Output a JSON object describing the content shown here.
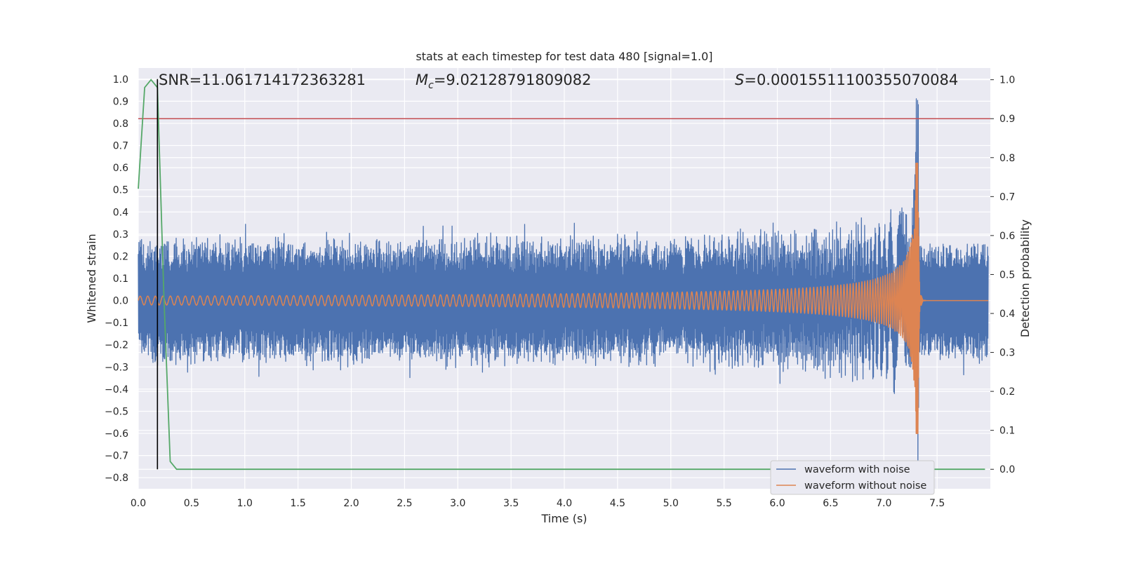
{
  "chart_data": {
    "type": "line",
    "title": "stats at each timestep for test data 480 [signal=1.0]",
    "xlabel": "Time (s)",
    "ylabel": "Whitened strain",
    "y2label": "Detection probability",
    "xlim": [
      0.0,
      8.0
    ],
    "ylim": [
      -0.85,
      1.05
    ],
    "y2lim": [
      -0.05,
      1.03
    ],
    "x_ticks": [
      0.0,
      0.5,
      1.0,
      1.5,
      2.0,
      2.5,
      3.0,
      3.5,
      4.0,
      4.5,
      5.0,
      5.5,
      6.0,
      6.5,
      7.0,
      7.5
    ],
    "x_tick_labels": [
      "0.0",
      "0.5",
      "1.0",
      "1.5",
      "2.0",
      "2.5",
      "3.0",
      "3.5",
      "4.0",
      "4.5",
      "5.0",
      "5.5",
      "6.0",
      "6.5",
      "7.0",
      "7.5"
    ],
    "y_ticks": [
      1.0,
      0.9,
      0.8,
      0.7,
      0.6,
      0.5,
      0.4,
      0.3,
      0.2,
      0.1,
      0.0,
      -0.1,
      -0.2,
      -0.3,
      -0.4,
      -0.5,
      -0.6,
      -0.7,
      -0.8
    ],
    "y_tick_labels": [
      "1.0",
      "0.9",
      "0.8",
      "0.7",
      "0.6",
      "0.5",
      "0.4",
      "0.3",
      "0.2",
      "0.1",
      "0.0",
      "−0.1",
      "−0.2",
      "−0.3",
      "−0.4",
      "−0.5",
      "−0.6",
      "−0.7",
      "−0.8"
    ],
    "y2_ticks": [
      1.0,
      0.9,
      0.8,
      0.7,
      0.6,
      0.5,
      0.4,
      0.3,
      0.2,
      0.1,
      0.0
    ],
    "y2_tick_labels": [
      "1.0",
      "0.9",
      "0.8",
      "0.7",
      "0.6",
      "0.5",
      "0.4",
      "0.3",
      "0.2",
      "0.1",
      "0.0"
    ],
    "grid": true,
    "legend_placement": "lower-right",
    "annotations": {
      "snr": "SNR=11.061714172363281",
      "mc_symbol": "M",
      "mc_sub": "c",
      "mc_value": "=9.02128791809082",
      "s_symbol": "S",
      "s_value": "=0.00015511100355070084"
    },
    "threshold": {
      "value": 0.9,
      "axis": "right",
      "color": "#c44e52"
    },
    "vline": {
      "x": 0.18,
      "y_from": -0.78,
      "y_to": 1.0,
      "color": "#000000"
    },
    "series": [
      {
        "name": "waveform with noise",
        "color": "#4c72b0",
        "axis": "left",
        "kind": "noisy-strain",
        "baseline_amplitude": 0.26,
        "peak_time": 7.32,
        "peak_value": 1.0,
        "peak_min": -0.8
      },
      {
        "name": "waveform without noise",
        "color": "#dd8452",
        "axis": "left",
        "kind": "chirp",
        "start_amplitude": 0.02,
        "peak_time": 7.32,
        "peak_value": 0.62,
        "peak_min": -0.6
      },
      {
        "name": "",
        "color": "#55a868",
        "axis": "right",
        "kind": "probability",
        "x": [
          0.0,
          0.06,
          0.12,
          0.18,
          0.24,
          0.3,
          0.36,
          0.42,
          7.95
        ],
        "y": [
          0.72,
          0.98,
          1.0,
          0.98,
          0.45,
          0.02,
          0.0,
          0.0,
          0.0
        ]
      }
    ],
    "legend": [
      "waveform with noise",
      "waveform without noise"
    ]
  }
}
